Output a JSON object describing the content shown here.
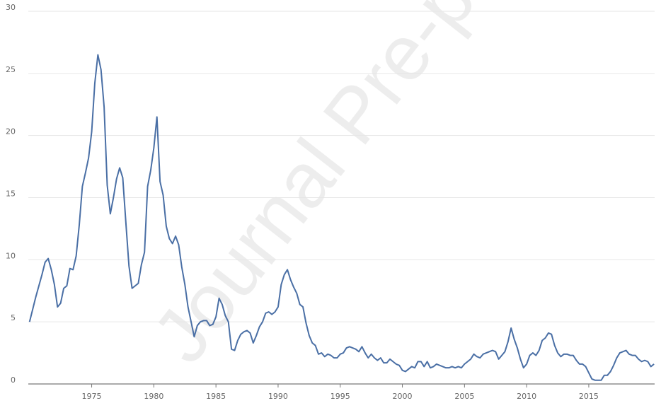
{
  "chart_data": {
    "type": "line",
    "watermark": "Journal Pre-proof",
    "xlim": [
      1969.9,
      2020.3
    ],
    "xticks": [
      1975,
      1980,
      1985,
      1990,
      1995,
      2000,
      2005,
      2010,
      2015
    ],
    "ylim": [
      0,
      30
    ],
    "yticks": [
      0,
      5,
      10,
      15,
      20,
      25,
      30
    ],
    "grid": true,
    "x": [
      1970.0,
      1970.25,
      1970.5,
      1970.75,
      1971.0,
      1971.25,
      1971.5,
      1971.75,
      1972.0,
      1972.25,
      1972.5,
      1972.75,
      1973.0,
      1973.25,
      1973.5,
      1973.75,
      1974.0,
      1974.25,
      1974.5,
      1974.75,
      1975.0,
      1975.25,
      1975.5,
      1975.75,
      1976.0,
      1976.25,
      1976.5,
      1976.75,
      1977.0,
      1977.25,
      1977.5,
      1977.75,
      1978.0,
      1978.25,
      1978.5,
      1978.75,
      1979.0,
      1979.25,
      1979.5,
      1979.75,
      1980.0,
      1980.25,
      1980.5,
      1980.75,
      1981.0,
      1981.25,
      1981.5,
      1981.75,
      1982.0,
      1982.25,
      1982.5,
      1982.75,
      1983.0,
      1983.25,
      1983.5,
      1983.75,
      1984.0,
      1984.25,
      1984.5,
      1984.75,
      1985.0,
      1985.25,
      1985.5,
      1985.75,
      1986.0,
      1986.25,
      1986.5,
      1986.75,
      1987.0,
      1987.25,
      1987.5,
      1987.75,
      1988.0,
      1988.25,
      1988.5,
      1988.75,
      1989.0,
      1989.25,
      1989.5,
      1989.75,
      1990.0,
      1990.25,
      1990.5,
      1990.75,
      1991.0,
      1991.25,
      1991.5,
      1991.75,
      1992.0,
      1992.25,
      1992.5,
      1992.75,
      1993.0,
      1993.25,
      1993.5,
      1993.75,
      1994.0,
      1994.25,
      1994.5,
      1994.75,
      1995.0,
      1995.25,
      1995.5,
      1995.75,
      1996.0,
      1996.25,
      1996.5,
      1996.75,
      1997.0,
      1997.25,
      1997.5,
      1997.75,
      1998.0,
      1998.25,
      1998.5,
      1998.75,
      1999.0,
      1999.25,
      1999.5,
      1999.75,
      2000.0,
      2000.25,
      2000.5,
      2000.75,
      2001.0,
      2001.25,
      2001.5,
      2001.75,
      2002.0,
      2002.25,
      2002.5,
      2002.75,
      2003.0,
      2003.25,
      2003.5,
      2003.75,
      2004.0,
      2004.25,
      2004.5,
      2004.75,
      2005.0,
      2005.25,
      2005.5,
      2005.75,
      2006.0,
      2006.25,
      2006.5,
      2006.75,
      2007.0,
      2007.25,
      2007.5,
      2007.75,
      2008.0,
      2008.25,
      2008.5,
      2008.75,
      2009.0,
      2009.25,
      2009.5,
      2009.75,
      2010.0,
      2010.25,
      2010.5,
      2010.75,
      2011.0,
      2011.25,
      2011.5,
      2011.75,
      2012.0,
      2012.25,
      2012.5,
      2012.75,
      2013.0,
      2013.25,
      2013.5,
      2013.75,
      2014.0,
      2014.25,
      2014.5,
      2014.75,
      2015.0,
      2015.25,
      2015.5,
      2015.75,
      2016.0,
      2016.25,
      2016.5,
      2016.75,
      2017.0,
      2017.25,
      2017.5,
      2017.75,
      2018.0,
      2018.25,
      2018.5,
      2018.75,
      2019.0,
      2019.25,
      2019.5,
      2019.75,
      2020.0,
      2020.25
    ],
    "series": [
      {
        "color": "#4a6fa5",
        "values": [
          5.0,
          6.0,
          7.0,
          7.9,
          8.8,
          9.8,
          10.1,
          9.2,
          8.0,
          6.2,
          6.5,
          7.7,
          7.9,
          9.3,
          9.2,
          10.3,
          12.8,
          15.9,
          17.0,
          18.2,
          20.3,
          24.2,
          26.5,
          25.3,
          22.3,
          16.0,
          13.7,
          15.0,
          16.5,
          17.4,
          16.6,
          13.0,
          9.5,
          7.7,
          7.9,
          8.1,
          9.6,
          10.6,
          15.9,
          17.2,
          19.0,
          21.5,
          16.3,
          15.2,
          12.7,
          11.7,
          11.3,
          11.9,
          11.2,
          9.4,
          8.0,
          6.2,
          5.0,
          3.8,
          4.7,
          5.0,
          5.1,
          5.1,
          4.7,
          4.8,
          5.4,
          6.9,
          6.4,
          5.5,
          5.0,
          2.8,
          2.7,
          3.5,
          4.0,
          4.2,
          4.3,
          4.1,
          3.3,
          3.9,
          4.6,
          5.0,
          5.7,
          5.8,
          5.6,
          5.8,
          6.2,
          8.0,
          8.8,
          9.2,
          8.4,
          7.8,
          7.3,
          6.4,
          6.2,
          4.9,
          3.9,
          3.3,
          3.1,
          2.4,
          2.5,
          2.2,
          2.4,
          2.3,
          2.1,
          2.1,
          2.4,
          2.5,
          2.9,
          3.0,
          2.9,
          2.8,
          2.6,
          3.0,
          2.5,
          2.1,
          2.4,
          2.1,
          1.9,
          2.1,
          1.7,
          1.7,
          2.0,
          1.8,
          1.6,
          1.5,
          1.1,
          1.0,
          1.2,
          1.4,
          1.3,
          1.8,
          1.8,
          1.4,
          1.8,
          1.3,
          1.4,
          1.6,
          1.5,
          1.4,
          1.3,
          1.3,
          1.4,
          1.3,
          1.4,
          1.3,
          1.6,
          1.8,
          2.0,
          2.4,
          2.2,
          2.1,
          2.4,
          2.5,
          2.6,
          2.7,
          2.6,
          2.0,
          2.3,
          2.6,
          3.4,
          4.5,
          3.6,
          2.9,
          2.0,
          1.3,
          1.6,
          2.3,
          2.5,
          2.3,
          2.7,
          3.5,
          3.7,
          4.1,
          4.0,
          3.1,
          2.5,
          2.2,
          2.4,
          2.4,
          2.3,
          2.3,
          1.9,
          1.6,
          1.6,
          1.4,
          0.9,
          0.4,
          0.3,
          0.3,
          0.3,
          0.7,
          0.7,
          1.0,
          1.5,
          2.1,
          2.5,
          2.6,
          2.7,
          2.4,
          2.3,
          2.3,
          2.0,
          1.8,
          1.9,
          1.8,
          1.4,
          1.6
        ]
      }
    ]
  }
}
